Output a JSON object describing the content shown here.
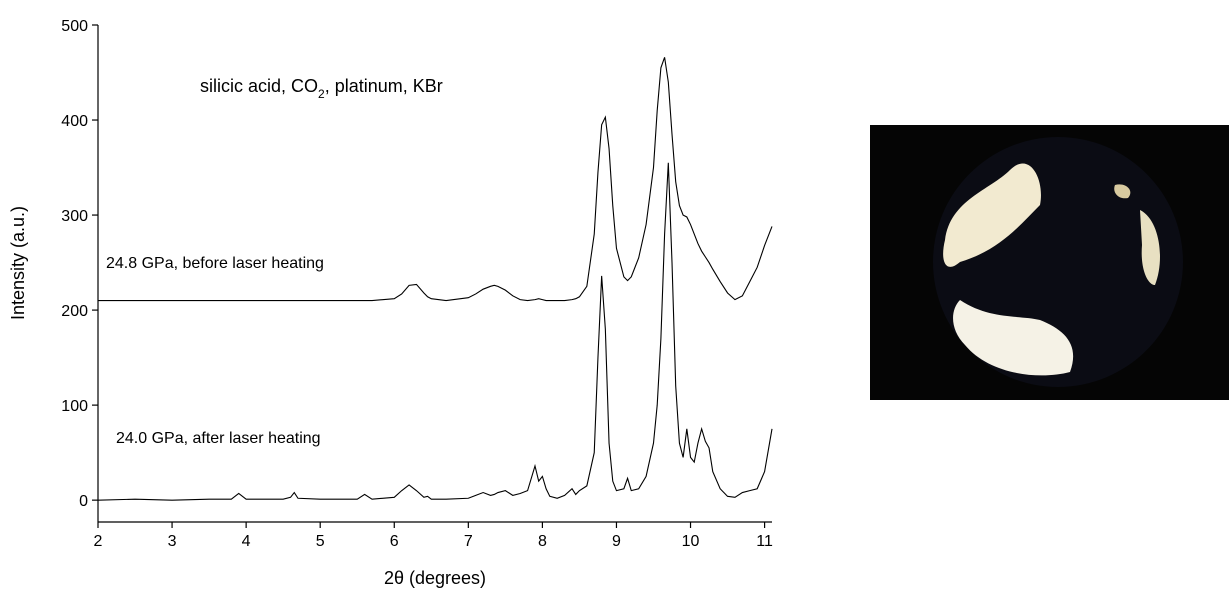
{
  "chart_data": {
    "type": "line",
    "annotation": {
      "text": "silicic acid, CO",
      "subscript": "2",
      "text_after": ", platinum, KBr"
    },
    "xlabel": "2θ (degrees)",
    "ylabel": "Intensity (a.u.)",
    "x": [
      2,
      2.5,
      3,
      3.5,
      3.8,
      3.9,
      4.0,
      4.5,
      4.6,
      4.65,
      4.7,
      5.0,
      5.5,
      5.6,
      5.7,
      6.0,
      6.1,
      6.2,
      6.3,
      6.4,
      6.45,
      6.5,
      6.7,
      7.0,
      7.1,
      7.2,
      7.3,
      7.35,
      7.4,
      7.5,
      7.6,
      7.7,
      7.8,
      7.9,
      7.95,
      8.0,
      8.05,
      8.1,
      8.2,
      8.3,
      8.4,
      8.45,
      8.5,
      8.6,
      8.7,
      8.75,
      8.8,
      8.85,
      8.9,
      8.95,
      9.0,
      9.1,
      9.15,
      9.2,
      9.3,
      9.4,
      9.5,
      9.55,
      9.6,
      9.65,
      9.7,
      9.75,
      9.8,
      9.85,
      9.9,
      9.95,
      10.0,
      10.05,
      10.1,
      10.15,
      10.2,
      10.25,
      10.3,
      10.4,
      10.5,
      10.6,
      10.7,
      10.8,
      10.9,
      11.0,
      11.1
    ],
    "series": [
      {
        "name": "24.8 GPa, before laser heating",
        "color": "#000000",
        "values": [
          210,
          210,
          210,
          210,
          210,
          210,
          210,
          210,
          210,
          210,
          210,
          210,
          210,
          210,
          210,
          212,
          217,
          226,
          227,
          218,
          214,
          212,
          210,
          213,
          217,
          222,
          225,
          226,
          225,
          221,
          215,
          211,
          210,
          211,
          212,
          211,
          210,
          210,
          210,
          210,
          211,
          212,
          214,
          225,
          280,
          345,
          395,
          403,
          370,
          310,
          265,
          235,
          231,
          235,
          255,
          290,
          350,
          410,
          455,
          466,
          440,
          385,
          335,
          310,
          300,
          298,
          290,
          280,
          270,
          262,
          256,
          250,
          243,
          230,
          218,
          211,
          215,
          230,
          245,
          268,
          288
        ]
      },
      {
        "name": "24.0 GPa, after laser heating",
        "color": "#000000",
        "values": [
          0,
          1,
          0,
          1,
          1,
          7,
          1,
          1,
          3,
          8,
          2,
          1,
          1,
          6,
          1,
          3,
          10,
          16,
          10,
          3,
          4,
          1,
          1,
          2,
          5,
          8,
          5,
          6,
          8,
          10,
          5,
          7,
          10,
          36,
          20,
          25,
          12,
          4,
          2,
          5,
          12,
          6,
          10,
          15,
          50,
          150,
          236,
          180,
          60,
          20,
          10,
          12,
          23,
          10,
          12,
          25,
          60,
          100,
          170,
          280,
          355,
          250,
          120,
          60,
          45,
          75,
          45,
          40,
          60,
          75,
          62,
          55,
          30,
          12,
          4,
          3,
          8,
          10,
          12,
          30,
          75
        ]
      }
    ],
    "xlim": [
      2,
      11.1
    ],
    "ylim": [
      -23,
      500
    ],
    "xticks": [
      2,
      3,
      4,
      5,
      6,
      7,
      8,
      9,
      10,
      11
    ],
    "yticks": [
      0,
      100,
      200,
      300,
      400,
      500
    ]
  }
}
